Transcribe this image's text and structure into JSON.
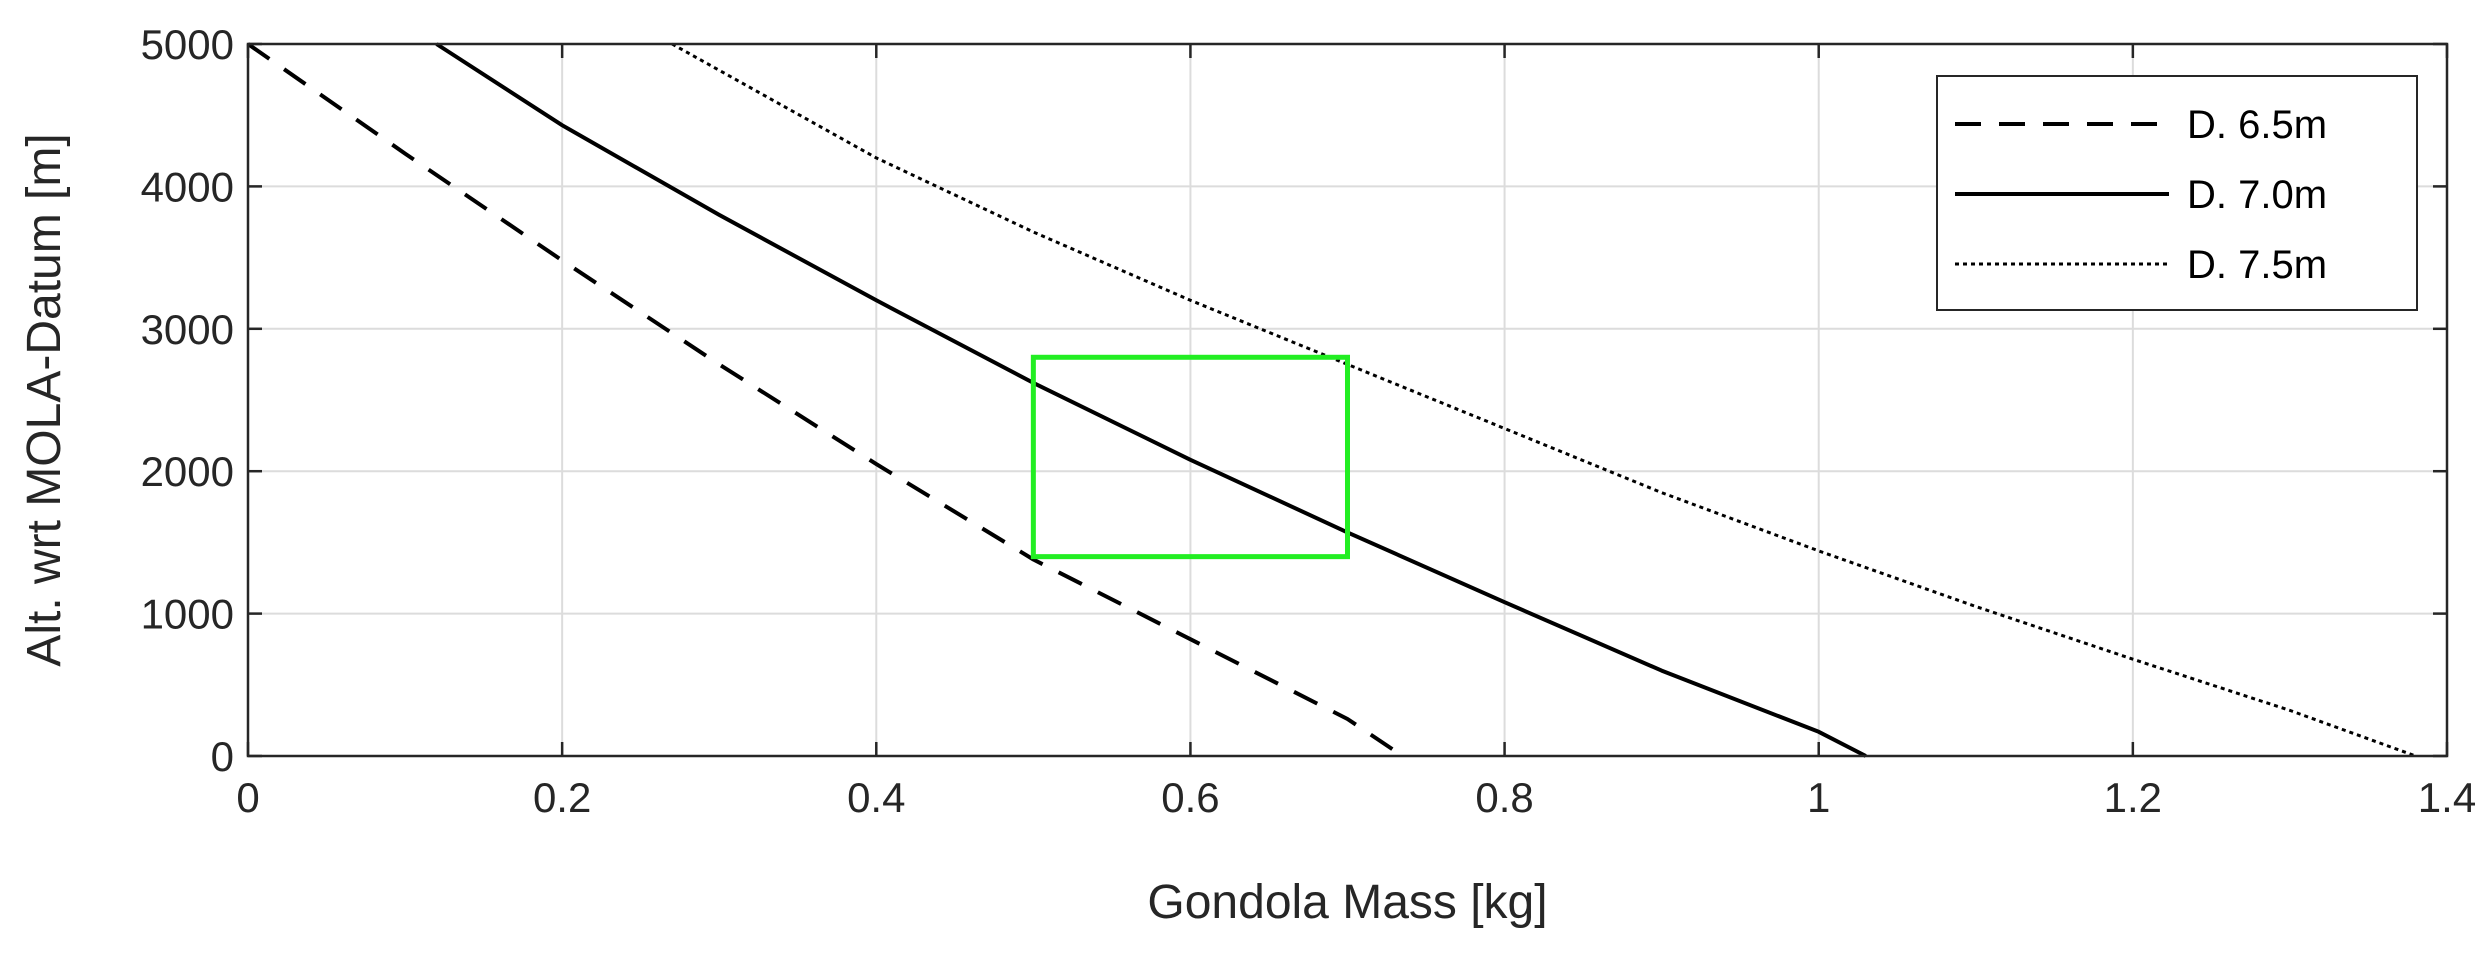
{
  "chart_data": {
    "type": "line",
    "title": "",
    "xlabel": "Gondola Mass [kg]",
    "ylabel": "Alt. wrt MOLA-Datum [m]",
    "xlim": [
      0,
      1.4
    ],
    "ylim": [
      0,
      5000
    ],
    "xticks": [
      0,
      0.2,
      0.4,
      0.6,
      0.8,
      1,
      1.2,
      1.4
    ],
    "yticks": [
      0,
      1000,
      2000,
      3000,
      4000,
      5000
    ],
    "xtick_labels": [
      "0",
      "0.2",
      "0.4",
      "0.6",
      "0.8",
      "1",
      "1.2",
      "1.4"
    ],
    "ytick_labels": [
      "0",
      "1000",
      "2000",
      "3000",
      "4000",
      "5000"
    ],
    "grid": true,
    "legend_position": "top-right",
    "series": [
      {
        "name": "D. 6.5m",
        "style": "dashed",
        "color": "#000000",
        "x": [
          0.0,
          0.1,
          0.2,
          0.3,
          0.4,
          0.5,
          0.6,
          0.7,
          0.735
        ],
        "y": [
          5000,
          4230,
          3480,
          2750,
          2050,
          1380,
          820,
          260,
          0
        ]
      },
      {
        "name": "D. 7.0m",
        "style": "solid",
        "color": "#000000",
        "x": [
          0.12,
          0.2,
          0.3,
          0.4,
          0.5,
          0.6,
          0.7,
          0.8,
          0.9,
          1.0,
          1.03
        ],
        "y": [
          5000,
          4430,
          3800,
          3200,
          2620,
          2080,
          1570,
          1080,
          600,
          170,
          0
        ]
      },
      {
        "name": "D. 7.5m",
        "style": "dotted",
        "color": "#000000",
        "x": [
          0.27,
          0.4,
          0.5,
          0.6,
          0.7,
          0.8,
          0.9,
          1.0,
          1.1,
          1.2,
          1.3,
          1.38
        ],
        "y": [
          5000,
          4200,
          3680,
          3200,
          2750,
          2300,
          1850,
          1440,
          1050,
          680,
          320,
          0
        ]
      }
    ],
    "annotations": [
      {
        "type": "rectangle",
        "color": "#22ee22",
        "x_range": [
          0.5,
          0.7
        ],
        "y_range": [
          1400,
          2800
        ]
      }
    ]
  }
}
